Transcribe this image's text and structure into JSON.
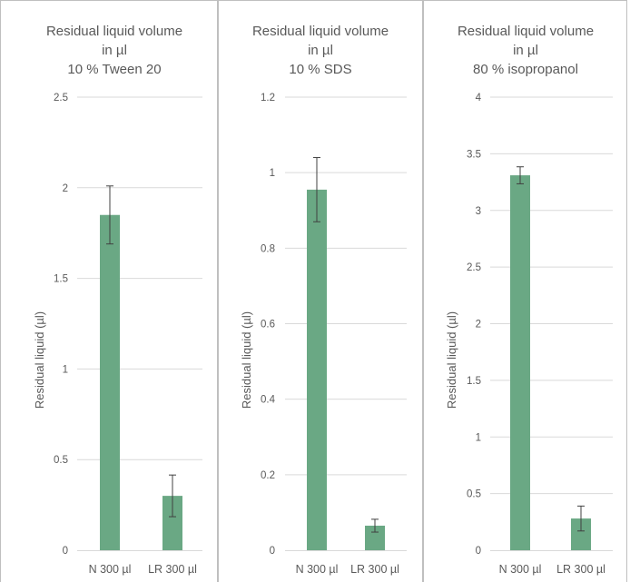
{
  "colors": {
    "bar": "#6aa884",
    "text": "#595959",
    "grid": "#d9d9d9",
    "frame": "#bfbfbf",
    "error": "#404040"
  },
  "chart_data": [
    {
      "type": "bar",
      "title": [
        "Residual liquid volume",
        "in µl",
        "10 % Tween 20"
      ],
      "ylabel": "Residual liquid (µl)",
      "xlabel": "",
      "categories": [
        "N 300 µl",
        "LR 300 µl"
      ],
      "values": [
        1.85,
        0.3
      ],
      "errors": [
        0.16,
        0.115
      ],
      "ylim": [
        0,
        2.5
      ],
      "yticks": [
        0,
        0.5,
        1,
        1.5,
        2,
        2.5
      ],
      "ytick_labels": [
        "0",
        "0.5",
        "1",
        "1.5",
        "2",
        "2.5"
      ],
      "grid": true
    },
    {
      "type": "bar",
      "title": [
        "Residual liquid volume",
        "in µl",
        "10 % SDS"
      ],
      "ylabel": "Residual liquid (µl)",
      "xlabel": "",
      "categories": [
        "N 300 µl",
        "LR 300 µl"
      ],
      "values": [
        0.955,
        0.065
      ],
      "errors": [
        0.085,
        0.017
      ],
      "ylim": [
        0,
        1.2
      ],
      "yticks": [
        0,
        0.2,
        0.4,
        0.6,
        0.8,
        1,
        1.2
      ],
      "ytick_labels": [
        "0",
        "0.2",
        "0.4",
        "0.6",
        "0.8",
        "1",
        "1.2"
      ],
      "grid": true
    },
    {
      "type": "bar",
      "title": [
        "Residual liquid volume",
        "in µl",
        "80 % isopropanol"
      ],
      "ylabel": "Residual liquid (µl)",
      "xlabel": "",
      "categories": [
        "N 300 µl",
        "LR 300 µl"
      ],
      "values": [
        3.31,
        0.28
      ],
      "errors": [
        0.075,
        0.11
      ],
      "ylim": [
        0,
        4
      ],
      "yticks": [
        0,
        0.5,
        1,
        1.5,
        2,
        2.5,
        3,
        3.5,
        4
      ],
      "ytick_labels": [
        "0",
        "0.5",
        "1",
        "1.5",
        "2",
        "2.5",
        "3",
        "3.5",
        "4"
      ],
      "grid": true
    }
  ]
}
